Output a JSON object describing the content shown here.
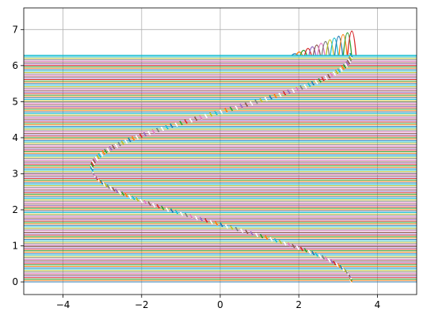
{
  "chart_data": {
    "type": "line",
    "title": "",
    "xlabel": "",
    "ylabel": "",
    "xlim": [
      -5,
      5
    ],
    "ylim": [
      -0.35,
      7.6
    ],
    "grid": true,
    "x_ticks": [
      -4,
      -2,
      0,
      2,
      4
    ],
    "y_ticks": [
      0,
      1,
      2,
      3,
      4,
      5,
      6,
      7
    ],
    "x_tick_labels": [
      "−4",
      "−2",
      "0",
      "2",
      "4"
    ],
    "y_tick_labels": [
      "0",
      "1",
      "2",
      "3",
      "4",
      "5",
      "6",
      "7"
    ],
    "curve": {
      "description": "many overlapping line series; x = 3.3·cos(y) envelope with short markers, horizontal lines filling y in [0, 6.28]",
      "amplitude": 3.3,
      "y_range": [
        0,
        6.28
      ],
      "line_count": 160,
      "peak_top_y": 7.25
    },
    "colors": [
      "#1f77b4",
      "#ff7f0e",
      "#2ca02c",
      "#d62728",
      "#9467bd",
      "#8c564b",
      "#e377c2",
      "#7f7f7f",
      "#bcbd22",
      "#17becf"
    ]
  }
}
